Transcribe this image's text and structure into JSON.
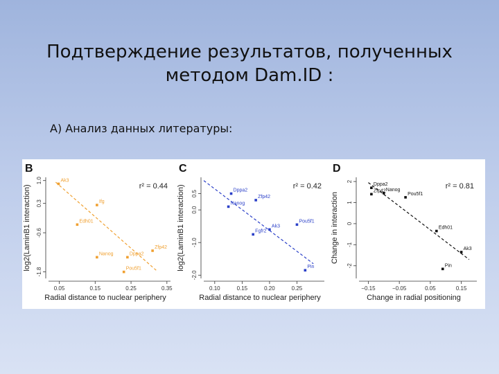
{
  "slide": {
    "title_line1": "Подтверждение результатов, полученных",
    "title_line2": "методом Dam.ID :",
    "subtitle": "А) Анализ данных литературы:"
  },
  "colors": {
    "orange": "#f0a030",
    "blue": "#2a3fc8",
    "black": "#111111"
  },
  "chart_data": [
    {
      "panel": "B",
      "type": "scatter",
      "color": "#f0a030",
      "xlabel": "Radial distance to nuclear periphery",
      "ylabel": "log2(LaminB1 interaction)",
      "xlim": [
        0.02,
        0.36
      ],
      "ylim": [
        -2.0,
        1.1
      ],
      "xticks": [
        0.05,
        0.15,
        0.25,
        0.35
      ],
      "xtick_labels": [
        "0.05",
        "0.15",
        "0.25",
        "0.35"
      ],
      "yticks": [
        -1.8,
        -0.6,
        0.3,
        1.0
      ],
      "ytick_labels": [
        "-1.8",
        "-0.6",
        "0.3",
        "1.0"
      ],
      "r2": "r² = 0.44",
      "fit": [
        [
          0.04,
          0.95
        ],
        [
          0.32,
          -1.75
        ]
      ],
      "points": [
        {
          "label": "Ak3",
          "x": 0.048,
          "y": 0.9
        },
        {
          "label": "Ifg",
          "x": 0.155,
          "y": 0.25
        },
        {
          "label": "Edh01",
          "x": 0.1,
          "y": -0.35
        },
        {
          "label": "Nanog",
          "x": 0.155,
          "y": -1.35
        },
        {
          "label": "Dppa2",
          "x": 0.24,
          "y": -1.35
        },
        {
          "label": "Zfp42",
          "x": 0.31,
          "y": -1.15
        },
        {
          "label": "Pou5f1",
          "x": 0.23,
          "y": -1.8
        }
      ]
    },
    {
      "panel": "C",
      "type": "scatter",
      "color": "#2a3fc8",
      "xlabel": "Radial distance to nuclear periphery",
      "ylabel": "log2(LaminB1 interaction)",
      "xlim": [
        0.08,
        0.3
      ],
      "ylim": [
        -2.1,
        1.0
      ],
      "xticks": [
        0.1,
        0.15,
        0.2,
        0.25
      ],
      "xtick_labels": [
        "0.10",
        "0.15",
        "0.20",
        "0.25"
      ],
      "yticks": [
        -2.0,
        -1.0,
        0.0,
        0.5
      ],
      "ytick_labels": [
        "-2.0",
        "-1.0",
        "0.0",
        "0.5"
      ],
      "r2": "r² = 0.42",
      "fit": [
        [
          0.08,
          0.9
        ],
        [
          0.28,
          -1.65
        ]
      ],
      "points": [
        {
          "label": "Dppa2",
          "x": 0.13,
          "y": 0.5
        },
        {
          "label": "Zfp42",
          "x": 0.175,
          "y": 0.3
        },
        {
          "label": "Nanog",
          "x": 0.125,
          "y": 0.1
        },
        {
          "label": "Pou5f1",
          "x": 0.25,
          "y": -0.45
        },
        {
          "label": "Ak3",
          "x": 0.2,
          "y": -0.6
        },
        {
          "label": "Fgfr2",
          "x": 0.17,
          "y": -0.75
        },
        {
          "label": "Pin",
          "x": 0.265,
          "y": -1.85
        }
      ]
    },
    {
      "panel": "D",
      "type": "scatter",
      "color": "#111111",
      "xlabel": "Change in radial positioning",
      "ylabel": "Change in interaction",
      "xlim": [
        -0.18,
        0.2
      ],
      "ylim": [
        -2.6,
        2.2
      ],
      "xticks": [
        -0.15,
        -0.05,
        0.05,
        0.15
      ],
      "xtick_labels": [
        "−0.15",
        "−0.05",
        "0.05",
        "0.15"
      ],
      "yticks": [
        -2,
        -1,
        0,
        1,
        2
      ],
      "ytick_labels": [
        "-2",
        "-1",
        "0",
        "1",
        "2"
      ],
      "r2": "r² = 0.81",
      "fit": [
        [
          -0.15,
          1.95
        ],
        [
          0.175,
          -1.7
        ]
      ],
      "points": [
        {
          "label": "Dppa2",
          "x": -0.14,
          "y": 1.7
        },
        {
          "label": "Nanog",
          "x": -0.1,
          "y": 1.45
        },
        {
          "label": "Zfp42",
          "x": -0.14,
          "y": 1.4
        },
        {
          "label": "Pou5f1",
          "x": -0.03,
          "y": 1.25
        },
        {
          "label": "Edh01",
          "x": 0.07,
          "y": -0.35
        },
        {
          "label": "Ak3",
          "x": 0.15,
          "y": -1.35
        },
        {
          "label": "Pin",
          "x": 0.09,
          "y": -2.15
        }
      ]
    }
  ]
}
